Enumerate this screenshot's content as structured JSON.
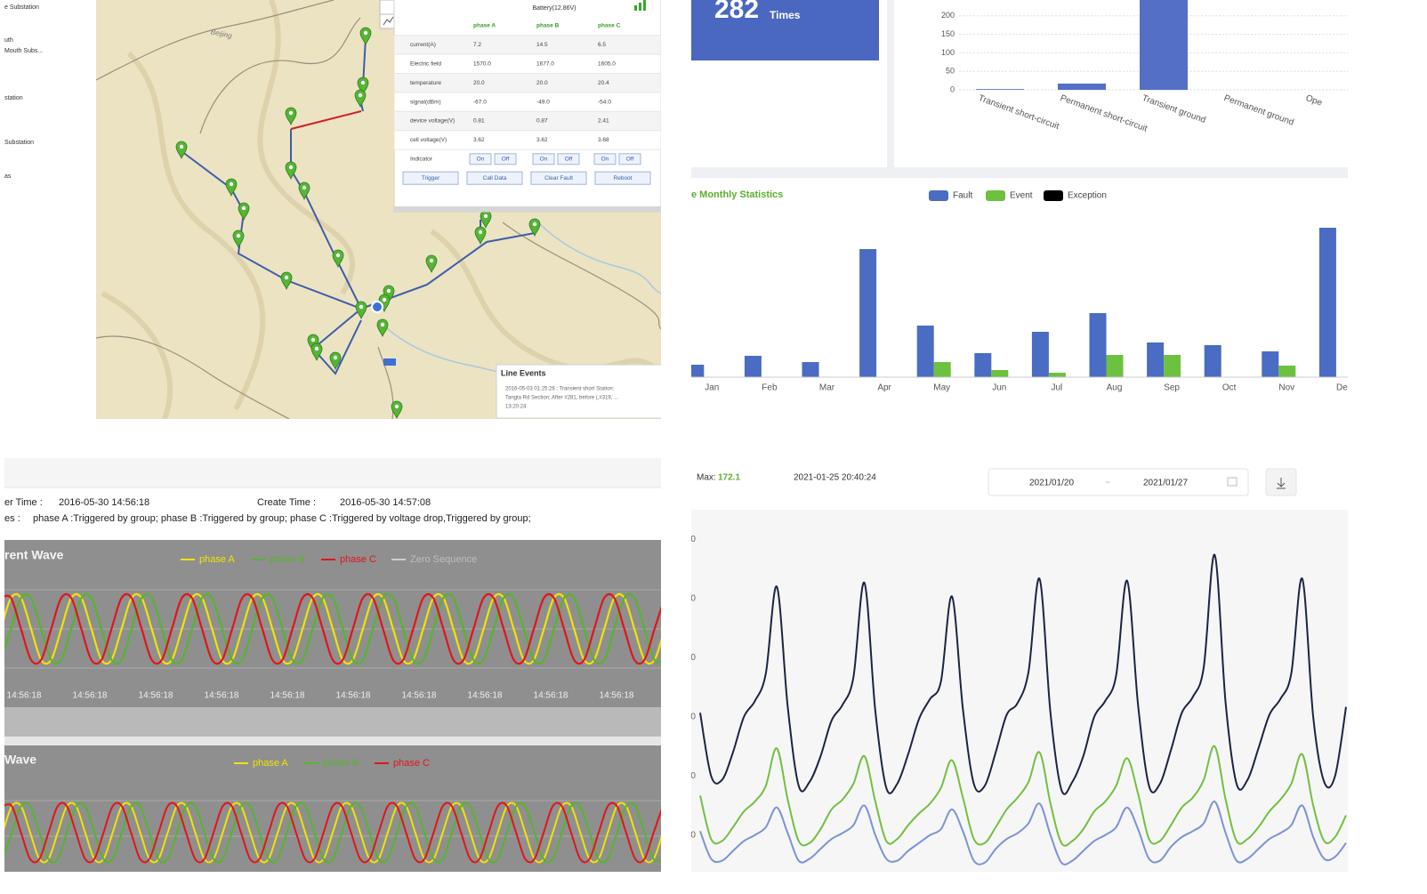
{
  "map_panel": {
    "sidebar": [
      "e Substation",
      "uth",
      "Mouth Subs...",
      "station",
      "Substation",
      "as"
    ],
    "place_label": "Beijing",
    "popup": {
      "battery": "Battery(12.86V)",
      "headers": [
        "phase A",
        "phase B",
        "phase C"
      ],
      "rows": [
        [
          "current(A)",
          "7.2",
          "14.5",
          "6.5"
        ],
        [
          "Electric field",
          "1570.0",
          "1677.0",
          "1605.0"
        ],
        [
          "temperature",
          "20.0",
          "20.0",
          "20.4"
        ],
        [
          "signal(dBm)",
          "-67.0",
          "-49.0",
          "-54.0"
        ],
        [
          "device voltage(V)",
          "0.81",
          "0.87",
          "2.41"
        ],
        [
          "cell voltage(V)",
          "3.62",
          "3.62",
          "3.68"
        ]
      ],
      "indicator": {
        "label": "Indicator",
        "on": "On",
        "off": "Off"
      },
      "buttons": [
        "Trigger",
        "Call Data",
        "Clear Fault",
        "Reboot"
      ]
    },
    "line_events": {
      "title": "Line Events",
      "lines": [
        "2016-05-03 01:25:26 : Transient short Station:",
        "Tangta Rd Section: After #281, before (,#319, ...",
        "13:20:24"
      ]
    }
  },
  "fault_total": {
    "value": 282,
    "unit": "Times"
  },
  "fault_type_chart": {
    "type": "bar",
    "categories": [
      "Transient short-circuit",
      "Permanent short-circuit",
      "Transient ground",
      "Permanent ground",
      "Ope"
    ],
    "values": [
      2,
      17,
      262,
      0,
      0
    ],
    "color": "#5470c6",
    "ylim": [
      0,
      250
    ],
    "yticks": [
      0,
      50,
      100,
      150,
      200,
      250
    ],
    "grid": true
  },
  "monthly_chart": {
    "type": "bar",
    "title": "e Monthly Statistics",
    "categories": [
      "Jan",
      "Feb",
      "Mar",
      "Apr",
      "May",
      "Jun",
      "Jul",
      "Aug",
      "Sep",
      "Oct",
      "Nov",
      "Dec"
    ],
    "series": [
      {
        "name": "Fault",
        "color": "#4a6cc2",
        "values": [
          14,
          24,
          17,
          144,
          58,
          27,
          51,
          72,
          39,
          36,
          29,
          168
        ]
      },
      {
        "name": "Event",
        "color": "#6cc13f",
        "values": [
          0,
          0,
          0,
          0,
          17,
          8,
          5,
          25,
          25,
          0,
          13,
          0
        ]
      },
      {
        "name": "Exception",
        "color": "#000000",
        "values": [
          0,
          0,
          0,
          0,
          0,
          0,
          0,
          0,
          0,
          0,
          0,
          0
        ]
      }
    ],
    "ylim": [
      0,
      170
    ]
  },
  "wave_record": {
    "trigger_label": "er Time :",
    "trigger_time": "2016-05-30 14:56:18",
    "create_label": "Create Time :",
    "create_time": "2016-05-30 14:57:08",
    "causes_label": "es :",
    "causes": "phase A :Triggered by group; phase B :Triggered by group; phase C :Triggered by voltage drop,Triggered by group;"
  },
  "current_wave": {
    "type": "line",
    "title": "rent Wave",
    "series": [
      {
        "name": "phase A",
        "color": "#f2e300",
        "values": [
          0,
          0.87,
          0.87,
          0,
          -0.87,
          -0.87,
          0,
          0.87,
          0.87,
          0,
          -0.87,
          -0.87,
          0,
          0.87,
          0.87,
          0,
          -0.87,
          -0.87,
          0,
          0.87,
          0.87,
          0,
          -0.87,
          -0.87,
          0,
          0.87,
          0.87,
          0,
          -0.87,
          -0.87,
          0,
          0.87,
          0.87,
          0,
          -0.87,
          -0.87,
          0,
          0.87,
          0.87,
          0,
          -0.87,
          -0.87,
          0,
          0.87,
          0.87,
          0,
          -0.87,
          -0.87,
          0,
          0.87,
          0.87,
          0,
          -0.87,
          -0.87,
          0,
          0.87,
          0.87,
          0,
          -0.87,
          -0.87,
          0,
          0.87,
          0.87,
          0,
          -0.87,
          -0.87,
          0
        ]
      },
      {
        "name": "phase B",
        "color": "#56b52c",
        "values": [
          -0.87,
          0,
          0.87,
          0.87,
          0,
          -0.87,
          -0.87,
          0,
          0.87,
          0.87,
          0,
          -0.87,
          -0.87,
          0,
          0.87,
          0.87,
          0,
          -0.87,
          -0.87,
          0,
          0.87,
          0.87,
          0,
          -0.87,
          -0.87,
          0,
          0.87,
          0.87,
          0,
          -0.87,
          -0.87,
          0,
          0.87,
          0.87,
          0,
          -0.87,
          -0.87,
          0,
          0.87,
          0.87,
          0,
          -0.87,
          -0.87,
          0,
          0.87,
          0.87,
          0,
          -0.87,
          -0.87,
          0,
          0.87,
          0.87,
          0,
          -0.87,
          -0.87,
          0,
          0.87,
          0.87,
          0,
          -0.87,
          -0.87,
          0,
          0.87,
          0.87,
          0,
          -0.87,
          -0.87
        ]
      },
      {
        "name": "phase C",
        "color": "#e3141a",
        "values": [
          0.87,
          0.87,
          0,
          -0.87,
          -0.87,
          0,
          0.87,
          0.87,
          0,
          -0.87,
          -0.87,
          0,
          0.87,
          0.87,
          0,
          -0.87,
          -0.87,
          0,
          0.87,
          0.87,
          0,
          -0.87,
          -0.87,
          0,
          0.87,
          0.87,
          0,
          -0.87,
          -0.87,
          0,
          0.87,
          0.87,
          0,
          -0.87,
          -0.87,
          0,
          0.87,
          0.87,
          0,
          -0.87,
          -0.87,
          0,
          0.87,
          0.87,
          0,
          -0.87,
          -0.87,
          0,
          0.87,
          0.87,
          0,
          -0.87,
          -0.87,
          0,
          0.87,
          0.87,
          0,
          -0.87,
          -0.87,
          0,
          0.87,
          0.87,
          0,
          -0.87,
          -0.87,
          0,
          0.87
        ]
      }
    ],
    "hidden_series_name": "Zero Sequence",
    "x_labels": [
      "14:56:18",
      "14:56:18",
      "14:56:18",
      "14:56:18",
      "14:56:18",
      "14:56:18",
      "14:56:18",
      "14:56:18",
      "14:56:18",
      "14:56:18",
      "14:56:18"
    ],
    "ylim": [
      -1.2,
      1.2
    ]
  },
  "voltage_wave": {
    "type": "line",
    "title": "Wave",
    "series": [
      {
        "name": "phase A",
        "color": "#f2e300",
        "values": [
          0,
          0.87,
          0.87,
          0,
          -0.87,
          -0.87,
          0,
          0.87,
          0.87,
          0,
          -0.87,
          -0.87,
          0,
          0.87,
          0.87,
          0,
          -0.87,
          -0.87,
          0,
          0.87,
          0.87,
          0,
          -0.87,
          -0.87,
          0,
          0.87,
          0.87,
          0,
          -0.87,
          -0.87,
          0,
          0.87,
          0.87,
          0,
          -0.87,
          -0.87,
          0,
          0.87,
          0.87,
          0,
          -0.87,
          -0.87,
          0,
          0.87,
          0.87,
          0,
          -0.87,
          -0.87,
          0,
          0.87,
          0.87,
          0,
          -0.87,
          -0.87,
          0,
          0.87,
          0.87,
          0,
          -0.87,
          -0.87,
          0,
          0.87,
          0.87,
          0,
          -0.87,
          -0.87,
          0,
          0.87,
          0.87,
          0,
          -0.87,
          -0.87,
          0
        ]
      },
      {
        "name": "phase B",
        "color": "#56b52c",
        "values": [
          -0.87,
          0,
          0.87,
          0.87,
          0,
          -0.87,
          -0.87,
          0,
          0.87,
          0.87,
          0,
          -0.87,
          -0.87,
          0,
          0.87,
          0.87,
          0,
          -0.87,
          -0.87,
          0,
          0.87,
          0.87,
          0,
          -0.87,
          -0.87,
          0,
          0.87,
          0.87,
          0,
          -0.87,
          -0.87,
          0,
          0.87,
          0.87,
          0,
          -0.87,
          -0.87,
          0,
          0.87,
          0.87,
          0,
          -0.87,
          -0.87,
          0,
          0.87,
          0.87,
          0,
          -0.87,
          -0.87,
          0,
          0.87,
          0.87,
          0,
          -0.87,
          -0.87,
          0,
          0.87,
          0.87,
          0,
          -0.87,
          -0.87,
          0,
          0.87,
          0.87,
          0,
          -0.87,
          -0.87,
          0,
          0.87,
          0.87,
          0,
          -0.87,
          -0.87
        ]
      },
      {
        "name": "phase C",
        "color": "#e3141a",
        "values": [
          0.87,
          0.87,
          0,
          -0.87,
          -0.87,
          0,
          0.87,
          0.87,
          0,
          -0.87,
          -0.87,
          0,
          0.87,
          0.87,
          0,
          -0.87,
          -0.87,
          0,
          0.87,
          0.87,
          0,
          -0.87,
          -0.87,
          0,
          0.87,
          0.87,
          0,
          -0.87,
          -0.87,
          0,
          0.87,
          0.87,
          0,
          -0.87,
          -0.87,
          0,
          0.87,
          0.87,
          0,
          -0.87,
          -0.87,
          0,
          0.87,
          0.87,
          0,
          -0.87,
          -0.87,
          0,
          0.87,
          0.87,
          0,
          -0.87,
          -0.87,
          0,
          0.87,
          0.87,
          0,
          -0.87,
          -0.87,
          0,
          0.87,
          0.87,
          0,
          -0.87,
          -0.87,
          0,
          0.87,
          0.87,
          0,
          -0.87,
          -0.87,
          0,
          0.87
        ]
      }
    ],
    "ylim": [
      -1.2,
      1.2
    ]
  },
  "trend_chart": {
    "type": "line",
    "max_label": "Max:",
    "max_value": 172.1,
    "max_time": "2021-01-25 20:40:24",
    "date_from": "2021/01/20",
    "date_separator": "~",
    "date_to": "2021/01/27",
    "series": [
      {
        "color": "#1b2441",
        "values": [
          92,
          60,
          58,
          72,
          90,
          98,
          112,
          156,
          95,
          55,
          57,
          70,
          88,
          96,
          110,
          158,
          93,
          54,
          56,
          71,
          89,
          99,
          108,
          151,
          94,
          56,
          55,
          72,
          91,
          97,
          113,
          160,
          92,
          53,
          57,
          70,
          90,
          98,
          111,
          159,
          96,
          55,
          56,
          73,
          92,
          100,
          115,
          172.1,
          97,
          56,
          58,
          74,
          91,
          99,
          112,
          160,
          90,
          57,
          60,
          95
        ]
      },
      {
        "color": "#72bf3f",
        "values": [
          50,
          28,
          27,
          34,
          42,
          47,
          55,
          74,
          48,
          27,
          26,
          33,
          43,
          48,
          56,
          70,
          47,
          27,
          28,
          35,
          41,
          46,
          54,
          68,
          49,
          28,
          26,
          34,
          43,
          49,
          57,
          72,
          46,
          26,
          27,
          33,
          42,
          47,
          55,
          69,
          51,
          28,
          27,
          35,
          44,
          49,
          58,
          75,
          48,
          27,
          28,
          34,
          42,
          48,
          56,
          71,
          45,
          27,
          29,
          40
        ]
      },
      {
        "color": "#7b93d4",
        "values": [
          32,
          18,
          17,
          22,
          27,
          30,
          34,
          44,
          31,
          17,
          18,
          23,
          28,
          31,
          35,
          45,
          30,
          18,
          17,
          22,
          26,
          30,
          33,
          43,
          32,
          17,
          16,
          23,
          28,
          31,
          36,
          46,
          30,
          16,
          17,
          22,
          27,
          30,
          34,
          44,
          33,
          18,
          17,
          24,
          29,
          32,
          36,
          47,
          31,
          17,
          18,
          23,
          28,
          31,
          35,
          45,
          29,
          18,
          19,
          26
        ]
      }
    ],
    "ylim": [
      15,
      195
    ],
    "yticks": [
      30,
      60,
      90,
      120,
      150,
      180
    ]
  }
}
